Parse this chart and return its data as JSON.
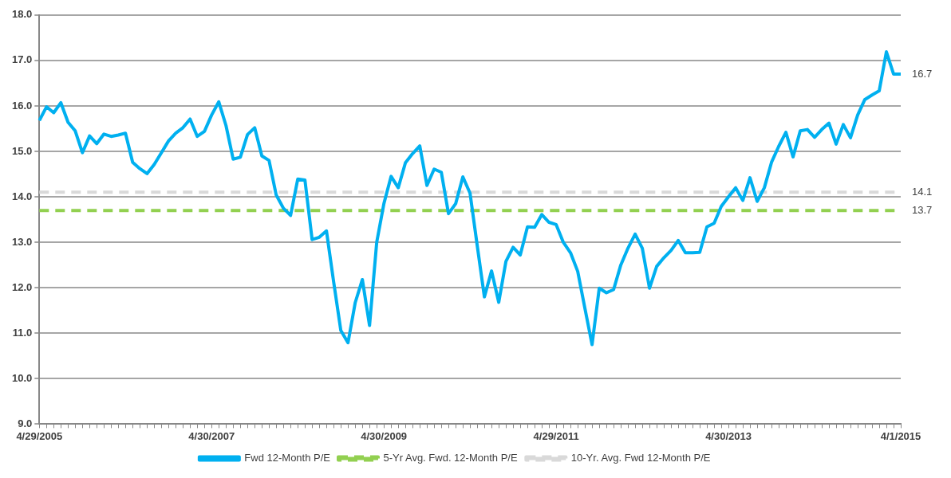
{
  "chart_data": {
    "type": "line",
    "categories": [
      "4/29/2005",
      null,
      null,
      null,
      null,
      null,
      null,
      null,
      null,
      null,
      null,
      null,
      null,
      null,
      null,
      null,
      null,
      null,
      null,
      null,
      null,
      null,
      null,
      null,
      "4/30/2007",
      null,
      null,
      null,
      null,
      null,
      null,
      null,
      null,
      null,
      null,
      null,
      null,
      null,
      null,
      null,
      null,
      null,
      null,
      null,
      null,
      null,
      null,
      null,
      "4/30/2009",
      null,
      null,
      null,
      null,
      null,
      null,
      null,
      null,
      null,
      null,
      null,
      null,
      null,
      null,
      null,
      null,
      null,
      null,
      null,
      null,
      null,
      null,
      null,
      "4/29/2011",
      null,
      null,
      null,
      null,
      null,
      null,
      null,
      null,
      null,
      null,
      null,
      null,
      null,
      null,
      null,
      null,
      null,
      null,
      null,
      null,
      null,
      null,
      null,
      "4/30/2013",
      null,
      null,
      null,
      null,
      null,
      null,
      null,
      null,
      null,
      null,
      null,
      null,
      null,
      null,
      null,
      null,
      null,
      null,
      null,
      null,
      null,
      null,
      null,
      "4/1/2015"
    ],
    "series": [
      {
        "name": "Fwd 12-Month P/E",
        "color": "#00b0f0",
        "line_style": "solid",
        "values": [
          15.68,
          15.98,
          15.85,
          16.07,
          15.64,
          15.45,
          14.97,
          15.34,
          15.17,
          15.38,
          15.33,
          15.36,
          15.4,
          14.76,
          14.62,
          14.51,
          14.71,
          14.97,
          15.23,
          15.4,
          15.52,
          15.71,
          15.33,
          15.44,
          15.8,
          16.09,
          15.57,
          14.83,
          14.87,
          15.37,
          15.52,
          14.9,
          14.8,
          14.04,
          13.75,
          13.59,
          14.39,
          14.37,
          13.06,
          13.11,
          13.25,
          12.13,
          11.06,
          10.79,
          11.67,
          12.18,
          11.17,
          13.0,
          13.85,
          14.45,
          14.2,
          14.75,
          14.95,
          15.12,
          14.25,
          14.61,
          14.54,
          13.63,
          13.85,
          14.44,
          14.08,
          12.93,
          11.8,
          12.37,
          11.68,
          12.58,
          12.89,
          12.72,
          13.34,
          13.33,
          13.61,
          13.44,
          13.39,
          13.0,
          12.77,
          12.36,
          11.55,
          10.75,
          11.99,
          11.89,
          11.96,
          12.5,
          12.87,
          13.18,
          12.87,
          11.99,
          12.47,
          12.66,
          12.82,
          13.04,
          12.77,
          12.77,
          12.78,
          13.34,
          13.42,
          13.79,
          14.0,
          14.2,
          13.92,
          14.42,
          13.9,
          14.2,
          14.76,
          15.11,
          15.42,
          14.88,
          15.45,
          15.48,
          15.31,
          15.48,
          15.62,
          15.16,
          15.59,
          15.3,
          15.8,
          16.14,
          16.24,
          16.33,
          17.19,
          16.7,
          16.7
        ],
        "value_labels": [
          null,
          null,
          null,
          null,
          null,
          null,
          null,
          null,
          null,
          null,
          null,
          null,
          null,
          null,
          null,
          null,
          null,
          null,
          null,
          null,
          null,
          null,
          null,
          null,
          null,
          null,
          null,
          null,
          null,
          null,
          null,
          null,
          null,
          null,
          null,
          null,
          null,
          null,
          null,
          null,
          null,
          null,
          null,
          null,
          null,
          null,
          null,
          null,
          null,
          null,
          null,
          null,
          null,
          null,
          null,
          null,
          null,
          null,
          null,
          null,
          null,
          null,
          null,
          null,
          null,
          null,
          null,
          null,
          null,
          null,
          null,
          null,
          null,
          null,
          null,
          null,
          null,
          null,
          null,
          null,
          null,
          null,
          null,
          null,
          null,
          null,
          null,
          null,
          null,
          null,
          null,
          null,
          null,
          null,
          null,
          null,
          null,
          null,
          null,
          null,
          null,
          null,
          null,
          null,
          null,
          null,
          null,
          null,
          null,
          null,
          null,
          null,
          null,
          null,
          null,
          null,
          null,
          null,
          null,
          null,
          "16.7"
        ]
      },
      {
        "name": "5-Yr Avg. Fwd. 12-Month P/E",
        "color": "#92d050",
        "line_style": "dashed",
        "values": [
          13.7,
          13.7,
          13.7,
          13.7,
          13.7,
          13.7,
          13.7,
          13.7,
          13.7,
          13.7,
          13.7,
          13.7,
          13.7,
          13.7,
          13.7,
          13.7,
          13.7,
          13.7,
          13.7,
          13.7,
          13.7,
          13.7,
          13.7,
          13.7,
          13.7,
          13.7,
          13.7,
          13.7,
          13.7,
          13.7,
          13.7,
          13.7,
          13.7,
          13.7,
          13.7,
          13.7,
          13.7,
          13.7,
          13.7,
          13.7,
          13.7,
          13.7,
          13.7,
          13.7,
          13.7,
          13.7,
          13.7,
          13.7,
          13.7,
          13.7,
          13.7,
          13.7,
          13.7,
          13.7,
          13.7,
          13.7,
          13.7,
          13.7,
          13.7,
          13.7,
          13.7,
          13.7,
          13.7,
          13.7,
          13.7,
          13.7,
          13.7,
          13.7,
          13.7,
          13.7,
          13.7,
          13.7,
          13.7,
          13.7,
          13.7,
          13.7,
          13.7,
          13.7,
          13.7,
          13.7,
          13.7,
          13.7,
          13.7,
          13.7,
          13.7,
          13.7,
          13.7,
          13.7,
          13.7,
          13.7,
          13.7,
          13.7,
          13.7,
          13.7,
          13.7,
          13.7,
          13.7,
          13.7,
          13.7,
          13.7,
          13.7,
          13.7,
          13.7,
          13.7,
          13.7,
          13.7,
          13.7,
          13.7,
          13.7,
          13.7,
          13.7,
          13.7,
          13.7,
          13.7,
          13.7,
          13.7,
          13.7,
          13.7,
          13.7,
          13.7,
          13.7
        ],
        "value_labels": [
          null,
          null,
          null,
          null,
          null,
          null,
          null,
          null,
          null,
          null,
          null,
          null,
          null,
          null,
          null,
          null,
          null,
          null,
          null,
          null,
          null,
          null,
          null,
          null,
          null,
          null,
          null,
          null,
          null,
          null,
          null,
          null,
          null,
          null,
          null,
          null,
          null,
          null,
          null,
          null,
          null,
          null,
          null,
          null,
          null,
          null,
          null,
          null,
          null,
          null,
          null,
          null,
          null,
          null,
          null,
          null,
          null,
          null,
          null,
          null,
          null,
          null,
          null,
          null,
          null,
          null,
          null,
          null,
          null,
          null,
          null,
          null,
          null,
          null,
          null,
          null,
          null,
          null,
          null,
          null,
          null,
          null,
          null,
          null,
          null,
          null,
          null,
          null,
          null,
          null,
          null,
          null,
          null,
          null,
          null,
          null,
          null,
          null,
          null,
          null,
          null,
          null,
          null,
          null,
          null,
          null,
          null,
          null,
          null,
          null,
          null,
          null,
          null,
          null,
          null,
          null,
          null,
          null,
          null,
          null,
          "13.7"
        ]
      },
      {
        "name": "10-Yr. Avg. Fwd 12-Month P/E",
        "color": "#d9d9d9",
        "line_style": "dashed",
        "values": [
          14.1,
          14.1,
          14.1,
          14.1,
          14.1,
          14.1,
          14.1,
          14.1,
          14.1,
          14.1,
          14.1,
          14.1,
          14.1,
          14.1,
          14.1,
          14.1,
          14.1,
          14.1,
          14.1,
          14.1,
          14.1,
          14.1,
          14.1,
          14.1,
          14.1,
          14.1,
          14.1,
          14.1,
          14.1,
          14.1,
          14.1,
          14.1,
          14.1,
          14.1,
          14.1,
          14.1,
          14.1,
          14.1,
          14.1,
          14.1,
          14.1,
          14.1,
          14.1,
          14.1,
          14.1,
          14.1,
          14.1,
          14.1,
          14.1,
          14.1,
          14.1,
          14.1,
          14.1,
          14.1,
          14.1,
          14.1,
          14.1,
          14.1,
          14.1,
          14.1,
          14.1,
          14.1,
          14.1,
          14.1,
          14.1,
          14.1,
          14.1,
          14.1,
          14.1,
          14.1,
          14.1,
          14.1,
          14.1,
          14.1,
          14.1,
          14.1,
          14.1,
          14.1,
          14.1,
          14.1,
          14.1,
          14.1,
          14.1,
          14.1,
          14.1,
          14.1,
          14.1,
          14.1,
          14.1,
          14.1,
          14.1,
          14.1,
          14.1,
          14.1,
          14.1,
          14.1,
          14.1,
          14.1,
          14.1,
          14.1,
          14.1,
          14.1,
          14.1,
          14.1,
          14.1,
          14.1,
          14.1,
          14.1,
          14.1,
          14.1,
          14.1,
          14.1,
          14.1,
          14.1,
          14.1,
          14.1,
          14.1,
          14.1,
          14.1,
          14.1,
          14.1
        ],
        "value_labels": [
          null,
          null,
          null,
          null,
          null,
          null,
          null,
          null,
          null,
          null,
          null,
          null,
          null,
          null,
          null,
          null,
          null,
          null,
          null,
          null,
          null,
          null,
          null,
          null,
          null,
          null,
          null,
          null,
          null,
          null,
          null,
          null,
          null,
          null,
          null,
          null,
          null,
          null,
          null,
          null,
          null,
          null,
          null,
          null,
          null,
          null,
          null,
          null,
          null,
          null,
          null,
          null,
          null,
          null,
          null,
          null,
          null,
          null,
          null,
          null,
          null,
          null,
          null,
          null,
          null,
          null,
          null,
          null,
          null,
          null,
          null,
          null,
          null,
          null,
          null,
          null,
          null,
          null,
          null,
          null,
          null,
          null,
          null,
          null,
          null,
          null,
          null,
          null,
          null,
          null,
          null,
          null,
          null,
          null,
          null,
          null,
          null,
          null,
          null,
          null,
          null,
          null,
          null,
          null,
          null,
          null,
          null,
          null,
          null,
          null,
          null,
          null,
          null,
          null,
          null,
          null,
          null,
          null,
          null,
          null,
          "14.1"
        ]
      }
    ],
    "ylim": [
      9,
      18
    ],
    "yticks": [
      {
        "value": 9,
        "label": "9.0"
      },
      {
        "value": 10,
        "label": "10.0"
      },
      {
        "value": 11,
        "label": "11.0"
      },
      {
        "value": 12,
        "label": "12.0"
      },
      {
        "value": 13,
        "label": "13.0"
      },
      {
        "value": 14,
        "label": "14.0"
      },
      {
        "value": 15,
        "label": "15.0"
      },
      {
        "value": 16,
        "label": "16.0"
      },
      {
        "value": 17,
        "label": "17.0"
      },
      {
        "value": 18,
        "label": "18.0"
      }
    ],
    "grid": "y",
    "legend": "bottom",
    "marker": "none"
  }
}
